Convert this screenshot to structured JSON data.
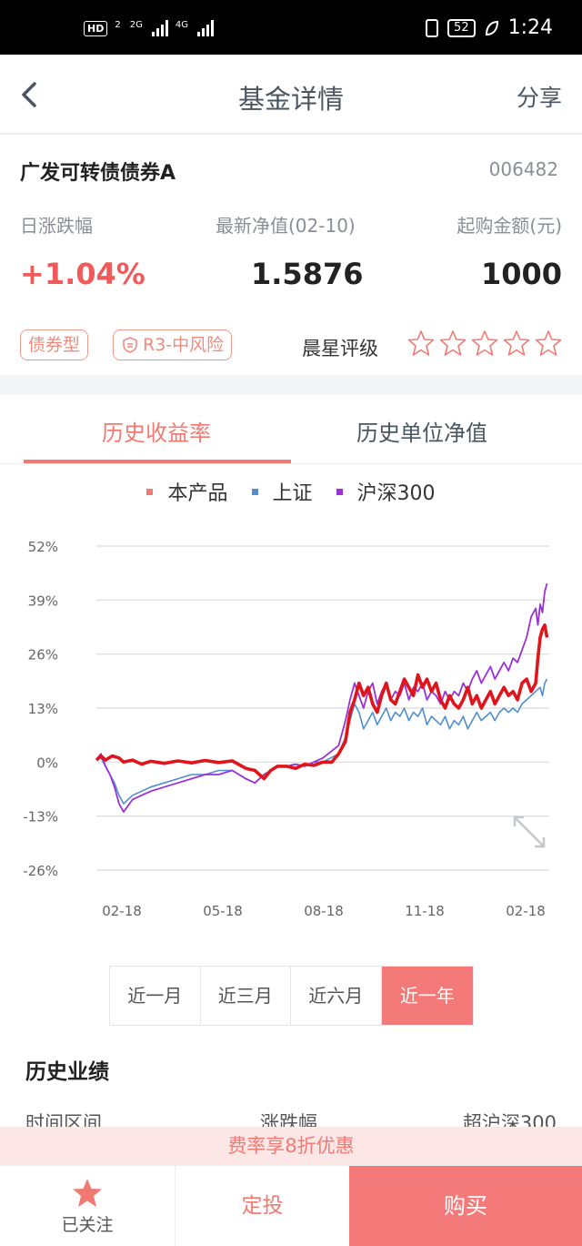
{
  "status_bar": {
    "left_badge": "HD",
    "left_badge_sub": "2",
    "net1": "2G",
    "net2": "4G",
    "battery": "52",
    "time": "1:24"
  },
  "header": {
    "title": "基金详情",
    "share_label": "分享",
    "back_icon": "chevron-left-icon"
  },
  "fund": {
    "name": "广发可转债债券A",
    "code": "006482",
    "daily_change_label": "日涨跌幅",
    "daily_change_value": "+1.04%",
    "nav_label": "最新净值(02-10)",
    "nav_value": "1.5876",
    "min_purchase_label": "起购金额(元)",
    "min_purchase_value": "1000",
    "type_tag": "债券型",
    "risk_tag": "R3-中风险",
    "rating_label": "晨星评级",
    "rating_stars": 0,
    "rating_max": 5
  },
  "tabs": [
    {
      "label": "历史收益率",
      "active": true
    },
    {
      "label": "历史单位净值",
      "active": false
    }
  ],
  "colors": {
    "accent": "#f07a72",
    "product": "#e0151b",
    "sse": "#4f8fd0",
    "csi300": "#9b30d6"
  },
  "chart_data": {
    "type": "line",
    "title": "",
    "xlabel": "",
    "ylabel": "",
    "ylim": [
      -26,
      52
    ],
    "yticks": [
      "52%",
      "39%",
      "26%",
      "13%",
      "0%",
      "-13%",
      "-26%"
    ],
    "xticks": [
      "02-18",
      "05-18",
      "08-18",
      "11-18",
      "02-18"
    ],
    "legend_position": "top-center",
    "grid": true,
    "series": [
      {
        "name": "本产品",
        "color": "#e0151b",
        "points": [
          [
            0,
            0.5
          ],
          [
            0.01,
            1.5
          ],
          [
            0.02,
            0.5
          ],
          [
            0.035,
            1.5
          ],
          [
            0.05,
            1
          ],
          [
            0.06,
            0
          ],
          [
            0.08,
            0.5
          ],
          [
            0.1,
            -0.5
          ],
          [
            0.12,
            0.2
          ],
          [
            0.15,
            -0.3
          ],
          [
            0.18,
            0.3
          ],
          [
            0.21,
            -0.2
          ],
          [
            0.24,
            0.4
          ],
          [
            0.27,
            -0.1
          ],
          [
            0.3,
            0.3
          ],
          [
            0.33,
            -1.5
          ],
          [
            0.35,
            -2
          ],
          [
            0.37,
            -4
          ],
          [
            0.385,
            -2
          ],
          [
            0.4,
            -1
          ],
          [
            0.42,
            -1
          ],
          [
            0.44,
            -1.5
          ],
          [
            0.46,
            -0.5
          ],
          [
            0.48,
            -0.8
          ],
          [
            0.5,
            0
          ],
          [
            0.52,
            0
          ],
          [
            0.535,
            2
          ],
          [
            0.55,
            5
          ],
          [
            0.56,
            12
          ],
          [
            0.57,
            15
          ],
          [
            0.58,
            19
          ],
          [
            0.59,
            16
          ],
          [
            0.6,
            18
          ],
          [
            0.61,
            14
          ],
          [
            0.62,
            12
          ],
          [
            0.63,
            16
          ],
          [
            0.64,
            19
          ],
          [
            0.65,
            15
          ],
          [
            0.66,
            14
          ],
          [
            0.67,
            17
          ],
          [
            0.68,
            20
          ],
          [
            0.69,
            18
          ],
          [
            0.7,
            16
          ],
          [
            0.71,
            21
          ],
          [
            0.72,
            18
          ],
          [
            0.73,
            20
          ],
          [
            0.74,
            17
          ],
          [
            0.75,
            19
          ],
          [
            0.76,
            15
          ],
          [
            0.77,
            13
          ],
          [
            0.78,
            16
          ],
          [
            0.79,
            14
          ],
          [
            0.8,
            13
          ],
          [
            0.81,
            15
          ],
          [
            0.82,
            18
          ],
          [
            0.83,
            14
          ],
          [
            0.84,
            16
          ],
          [
            0.85,
            13
          ],
          [
            0.86,
            15
          ],
          [
            0.87,
            17
          ],
          [
            0.88,
            14
          ],
          [
            0.89,
            16
          ],
          [
            0.9,
            18
          ],
          [
            0.91,
            16
          ],
          [
            0.92,
            17
          ],
          [
            0.93,
            15
          ],
          [
            0.94,
            19
          ],
          [
            0.95,
            20
          ],
          [
            0.96,
            17
          ],
          [
            0.97,
            19
          ],
          [
            0.975,
            25
          ],
          [
            0.98,
            30
          ],
          [
            0.985,
            32
          ],
          [
            0.99,
            33
          ],
          [
            0.995,
            30
          ]
        ]
      },
      {
        "name": "上证",
        "color": "#4f8fd0",
        "points": [
          [
            0,
            0.5
          ],
          [
            0.01,
            1
          ],
          [
            0.02,
            -1
          ],
          [
            0.03,
            -3
          ],
          [
            0.04,
            -5
          ],
          [
            0.05,
            -8
          ],
          [
            0.06,
            -10
          ],
          [
            0.08,
            -8
          ],
          [
            0.1,
            -7
          ],
          [
            0.12,
            -6
          ],
          [
            0.15,
            -5
          ],
          [
            0.18,
            -4
          ],
          [
            0.21,
            -3
          ],
          [
            0.24,
            -3
          ],
          [
            0.27,
            -2
          ],
          [
            0.3,
            -2
          ],
          [
            0.33,
            -4
          ],
          [
            0.35,
            -5
          ],
          [
            0.37,
            -3
          ],
          [
            0.385,
            -2
          ],
          [
            0.4,
            -1
          ],
          [
            0.42,
            -1
          ],
          [
            0.44,
            -0.5
          ],
          [
            0.46,
            -1
          ],
          [
            0.48,
            0
          ],
          [
            0.5,
            0
          ],
          [
            0.535,
            2
          ],
          [
            0.55,
            6
          ],
          [
            0.56,
            10
          ],
          [
            0.57,
            14
          ],
          [
            0.58,
            12
          ],
          [
            0.59,
            8
          ],
          [
            0.6,
            10
          ],
          [
            0.61,
            12
          ],
          [
            0.62,
            9
          ],
          [
            0.63,
            11
          ],
          [
            0.64,
            13
          ],
          [
            0.65,
            10
          ],
          [
            0.66,
            12
          ],
          [
            0.67,
            11
          ],
          [
            0.68,
            13
          ],
          [
            0.69,
            10
          ],
          [
            0.7,
            12
          ],
          [
            0.71,
            11
          ],
          [
            0.72,
            13
          ],
          [
            0.73,
            9
          ],
          [
            0.74,
            11
          ],
          [
            0.75,
            10
          ],
          [
            0.76,
            9
          ],
          [
            0.77,
            11
          ],
          [
            0.78,
            8
          ],
          [
            0.79,
            10
          ],
          [
            0.8,
            9
          ],
          [
            0.81,
            11
          ],
          [
            0.82,
            8
          ],
          [
            0.83,
            10
          ],
          [
            0.84,
            12
          ],
          [
            0.85,
            10
          ],
          [
            0.86,
            11
          ],
          [
            0.87,
            12
          ],
          [
            0.88,
            10
          ],
          [
            0.89,
            12
          ],
          [
            0.9,
            13
          ],
          [
            0.91,
            12
          ],
          [
            0.92,
            13
          ],
          [
            0.93,
            12
          ],
          [
            0.94,
            14
          ],
          [
            0.95,
            15
          ],
          [
            0.96,
            16
          ],
          [
            0.97,
            17
          ],
          [
            0.98,
            18
          ],
          [
            0.985,
            16
          ],
          [
            0.99,
            19
          ],
          [
            0.995,
            20
          ]
        ]
      },
      {
        "name": "沪深300",
        "color": "#9b30d6",
        "points": [
          [
            0,
            0.5
          ],
          [
            0.01,
            2
          ],
          [
            0.02,
            -1
          ],
          [
            0.03,
            -3
          ],
          [
            0.04,
            -6
          ],
          [
            0.05,
            -10
          ],
          [
            0.06,
            -12
          ],
          [
            0.08,
            -9
          ],
          [
            0.1,
            -8
          ],
          [
            0.12,
            -7
          ],
          [
            0.15,
            -6
          ],
          [
            0.18,
            -5
          ],
          [
            0.21,
            -4
          ],
          [
            0.24,
            -3
          ],
          [
            0.27,
            -3
          ],
          [
            0.3,
            -2
          ],
          [
            0.33,
            -4
          ],
          [
            0.35,
            -5
          ],
          [
            0.37,
            -3
          ],
          [
            0.385,
            -2
          ],
          [
            0.4,
            -1
          ],
          [
            0.42,
            -1
          ],
          [
            0.44,
            -0.5
          ],
          [
            0.46,
            -1
          ],
          [
            0.48,
            0
          ],
          [
            0.5,
            1
          ],
          [
            0.535,
            4
          ],
          [
            0.55,
            10
          ],
          [
            0.56,
            15
          ],
          [
            0.57,
            19
          ],
          [
            0.58,
            16
          ],
          [
            0.59,
            13
          ],
          [
            0.6,
            17
          ],
          [
            0.61,
            19
          ],
          [
            0.62,
            14
          ],
          [
            0.63,
            17
          ],
          [
            0.64,
            19
          ],
          [
            0.65,
            15
          ],
          [
            0.66,
            17
          ],
          [
            0.67,
            16
          ],
          [
            0.68,
            19
          ],
          [
            0.69,
            15
          ],
          [
            0.7,
            18
          ],
          [
            0.71,
            17
          ],
          [
            0.72,
            19
          ],
          [
            0.73,
            15
          ],
          [
            0.74,
            17
          ],
          [
            0.75,
            16
          ],
          [
            0.76,
            14
          ],
          [
            0.77,
            17
          ],
          [
            0.78,
            15
          ],
          [
            0.79,
            17
          ],
          [
            0.8,
            16
          ],
          [
            0.81,
            19
          ],
          [
            0.82,
            17
          ],
          [
            0.83,
            20
          ],
          [
            0.84,
            22
          ],
          [
            0.85,
            19
          ],
          [
            0.86,
            21
          ],
          [
            0.87,
            23
          ],
          [
            0.88,
            20
          ],
          [
            0.89,
            22
          ],
          [
            0.9,
            24
          ],
          [
            0.91,
            22
          ],
          [
            0.92,
            25
          ],
          [
            0.93,
            24
          ],
          [
            0.94,
            27
          ],
          [
            0.95,
            30
          ],
          [
            0.96,
            35
          ],
          [
            0.97,
            37
          ],
          [
            0.975,
            33
          ],
          [
            0.98,
            38
          ],
          [
            0.985,
            36
          ],
          [
            0.99,
            41
          ],
          [
            0.995,
            43
          ]
        ]
      }
    ],
    "x_domain": [
      0,
      1
    ]
  },
  "periods": [
    {
      "label": "近一月",
      "active": false
    },
    {
      "label": "近三月",
      "active": false
    },
    {
      "label": "近六月",
      "active": false
    },
    {
      "label": "近一年",
      "active": true
    }
  ],
  "history": {
    "title": "历史业绩",
    "col1": "时间区间",
    "col2": "涨跌幅",
    "col3": "超沪深300"
  },
  "promo": "费率享8折优惠",
  "bottom_bar": {
    "follow_label": "已关注",
    "sip_label": "定投",
    "buy_label": "购买"
  }
}
